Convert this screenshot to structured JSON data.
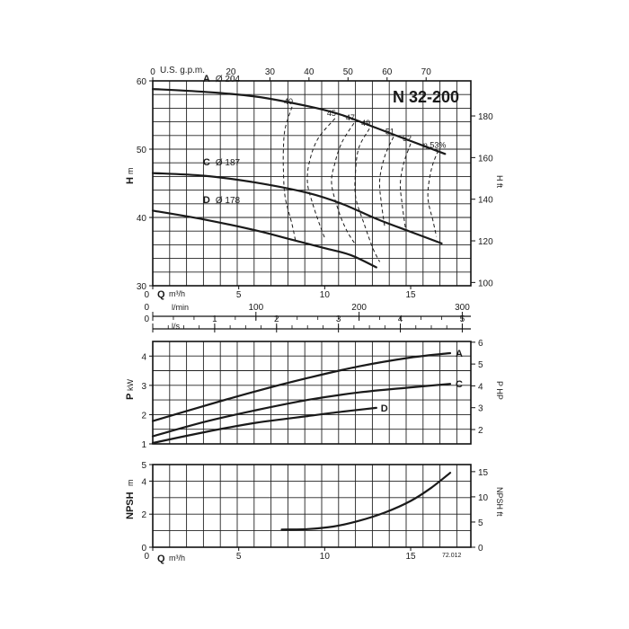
{
  "model": "N 32-200",
  "code": "72.012",
  "units": {
    "h_m": "H",
    "h_m_unit": "m",
    "h_ft": "H ft",
    "p_kw": "P",
    "p_kw_unit": "kW",
    "p_hp": "P HP",
    "npsh_m": "NPSH",
    "npsh_m_unit": "m",
    "npsh_ft": "NPSH ft",
    "q": "Q",
    "q_unit": "m³/h",
    "gpm": "U.S. g.p.m.",
    "lmin": "l/min",
    "ls": "l/s"
  },
  "chart_data": [
    {
      "type": "line",
      "name": "head",
      "xlabel": "Q m³/h",
      "ylabel": "H m",
      "xlim": [
        0,
        18.5
      ],
      "ylim": [
        30,
        60
      ],
      "y2label": "H ft",
      "series": [
        {
          "name": "A",
          "label": "Ø 204",
          "points": [
            [
              0,
              58.8
            ],
            [
              3,
              58.4
            ],
            [
              6,
              57.7
            ],
            [
              9,
              56.3
            ],
            [
              11,
              55
            ],
            [
              13,
              53.1
            ],
            [
              15,
              51.2
            ],
            [
              17,
              49.3
            ]
          ]
        },
        {
          "name": "C",
          "label": "Ø 187",
          "points": [
            [
              0,
              46.5
            ],
            [
              3,
              46.1
            ],
            [
              6,
              45.1
            ],
            [
              9,
              43.6
            ],
            [
              11,
              42
            ],
            [
              13,
              39.8
            ],
            [
              15,
              37.9
            ],
            [
              16.8,
              36.2
            ]
          ]
        },
        {
          "name": "D",
          "label": "Ø 178",
          "points": [
            [
              0,
              41
            ],
            [
              3,
              39.7
            ],
            [
              6,
              38.1
            ],
            [
              8,
              36.8
            ],
            [
              10,
              35.5
            ],
            [
              11.5,
              34.5
            ],
            [
              13,
              32.7
            ]
          ]
        }
      ],
      "efficiency_label_prefix": "η",
      "efficiency_curves": [
        {
          "label": "40",
          "points": [
            [
              8.1,
              56.2
            ],
            [
              7.7,
              53
            ],
            [
              7.6,
              50
            ],
            [
              7.6,
              47
            ],
            [
              7.7,
              43
            ],
            [
              8.1,
              39
            ],
            [
              8.3,
              36.6
            ]
          ]
        },
        {
          "label": "45",
          "points": [
            [
              10.6,
              54.5
            ],
            [
              9.6,
              51.5
            ],
            [
              9.1,
              48
            ],
            [
              9,
              45
            ],
            [
              9.3,
              42
            ],
            [
              9.7,
              39
            ],
            [
              10,
              37
            ]
          ]
        },
        {
          "label": "47",
          "points": [
            [
              11.7,
              53.8
            ],
            [
              11,
              51
            ],
            [
              10.6,
              48
            ],
            [
              10.4,
              45
            ],
            [
              10.8,
              41
            ],
            [
              11.3,
              38
            ],
            [
              11.8,
              36
            ]
          ]
        },
        {
          "label": "49",
          "points": [
            [
              12.6,
              53
            ],
            [
              12,
              50.3
            ],
            [
              11.8,
              47
            ],
            [
              11.8,
              43
            ],
            [
              12.3,
              39
            ],
            [
              12.8,
              35.5
            ],
            [
              13.2,
              33.5
            ]
          ]
        },
        {
          "label": "51",
          "points": [
            [
              14,
              51.8
            ],
            [
              13.5,
              49
            ],
            [
              13.2,
              45.5
            ],
            [
              13.3,
              42
            ],
            [
              13.5,
              38.5
            ]
          ]
        },
        {
          "label": "52",
          "points": [
            [
              15,
              50.8
            ],
            [
              14.6,
              48
            ],
            [
              14.4,
              45
            ],
            [
              14.5,
              42
            ],
            [
              14.7,
              38.4
            ]
          ]
        },
        {
          "label": "53%",
          "points": [
            [
              16.6,
              49.8
            ],
            [
              16.2,
              47
            ],
            [
              16,
              43
            ],
            [
              16.3,
              39.5
            ],
            [
              16.5,
              37.2
            ]
          ]
        }
      ],
      "x_ticks": [
        0,
        5,
        10,
        15
      ],
      "y_ticks": [
        30,
        40,
        50,
        60
      ],
      "y2_ticks": [
        100,
        120,
        140,
        160,
        180
      ],
      "gpm_ticks": [
        0,
        20,
        30,
        40,
        50,
        60,
        70
      ],
      "lmin_ticks": [
        0,
        100,
        200,
        300
      ],
      "ls_ticks": [
        0,
        1,
        2,
        3,
        4,
        5
      ]
    },
    {
      "type": "line",
      "name": "power",
      "xlabel": "Q m³/h",
      "ylabel": "P kW",
      "y2label": "P HP",
      "xlim": [
        0,
        18.5
      ],
      "ylim": [
        1,
        4.5
      ],
      "series": [
        {
          "name": "A",
          "points": [
            [
              0,
              1.78
            ],
            [
              3,
              2.3
            ],
            [
              6,
              2.8
            ],
            [
              9,
              3.25
            ],
            [
              12,
              3.65
            ],
            [
              15,
              3.95
            ],
            [
              17.3,
              4.1
            ]
          ]
        },
        {
          "name": "C",
          "points": [
            [
              0,
              1.26
            ],
            [
              3,
              1.75
            ],
            [
              6,
              2.15
            ],
            [
              9,
              2.5
            ],
            [
              12,
              2.76
            ],
            [
              15,
              2.93
            ],
            [
              17.3,
              3.05
            ]
          ]
        },
        {
          "name": "D",
          "points": [
            [
              0,
              1.03
            ],
            [
              3,
              1.4
            ],
            [
              6,
              1.72
            ],
            [
              9,
              1.95
            ],
            [
              11,
              2.1
            ],
            [
              13,
              2.23
            ]
          ]
        }
      ],
      "y_ticks": [
        1,
        2,
        3,
        4
      ],
      "y2_ticks": [
        2,
        3,
        4,
        5,
        6
      ]
    },
    {
      "type": "line",
      "name": "npsh",
      "xlabel": "Q m³/h",
      "ylabel": "NPSH m",
      "y2label": "NPSH ft",
      "xlim": [
        0,
        18.5
      ],
      "ylim": [
        0,
        5
      ],
      "series": [
        {
          "name": "required",
          "points": [
            [
              7.5,
              1.07
            ],
            [
              9,
              1.1
            ],
            [
              10.5,
              1.25
            ],
            [
              12,
              1.6
            ],
            [
              13.5,
              2.1
            ],
            [
              15,
              2.8
            ],
            [
              16.2,
              3.6
            ],
            [
              17.3,
              4.5
            ]
          ]
        }
      ],
      "x_ticks": [
        0,
        5,
        10,
        15
      ],
      "y_ticks": [
        0,
        2,
        4,
        5
      ],
      "y2_ticks": [
        0,
        5,
        10,
        15
      ]
    }
  ]
}
